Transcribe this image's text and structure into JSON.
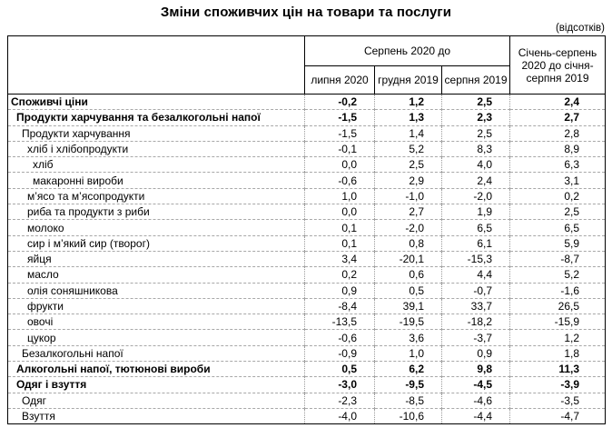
{
  "title": "Зміни споживчих цін на товари та послуги",
  "units_note": "(відсотків)",
  "table": {
    "col_group_header": "Серпень 2020 до",
    "col_headers": [
      "липня 2020",
      "грудня 2019",
      "серпня 2019"
    ],
    "period_col_header": "Січень-серпень 2020 до січня-серпня 2019",
    "rows": [
      {
        "label": "Споживчі ціни",
        "bold": true,
        "indent": 0,
        "values": [
          "-0,2",
          "1,2",
          "2,5",
          "2,4"
        ]
      },
      {
        "label": "Продукти харчування та безалкогольні напої",
        "bold": true,
        "indent": 1,
        "values": [
          "-1,5",
          "1,3",
          "2,3",
          "2,7"
        ]
      },
      {
        "label": "Продукти харчування",
        "bold": false,
        "indent": 2,
        "values": [
          "-1,5",
          "1,4",
          "2,5",
          "2,8"
        ]
      },
      {
        "label": "хліб і хлібопродукти",
        "bold": false,
        "indent": 3,
        "values": [
          "-0,1",
          "5,2",
          "8,3",
          "8,9"
        ]
      },
      {
        "label": "хліб",
        "bold": false,
        "indent": 4,
        "values": [
          "0,0",
          "2,5",
          "4,0",
          "6,3"
        ]
      },
      {
        "label": "макаронні вироби",
        "bold": false,
        "indent": 4,
        "values": [
          "-0,6",
          "2,9",
          "2,4",
          "3,1"
        ]
      },
      {
        "label": "м’ясо та м’ясопродукти",
        "bold": false,
        "indent": 3,
        "values": [
          "1,0",
          "-1,0",
          "-2,0",
          "0,2"
        ]
      },
      {
        "label": "риба та продукти з риби",
        "bold": false,
        "indent": 3,
        "values": [
          "0,0",
          "2,7",
          "1,9",
          "2,5"
        ]
      },
      {
        "label": "молоко",
        "bold": false,
        "indent": 3,
        "values": [
          "0,1",
          "-2,0",
          "6,5",
          "6,5"
        ]
      },
      {
        "label": "сир і м’який сир (творог)",
        "bold": false,
        "indent": 3,
        "values": [
          "0,1",
          "0,8",
          "6,1",
          "5,9"
        ]
      },
      {
        "label": "яйця",
        "bold": false,
        "indent": 3,
        "values": [
          "3,4",
          "-20,1",
          "-15,3",
          "-8,7"
        ]
      },
      {
        "label": "масло",
        "bold": false,
        "indent": 3,
        "values": [
          "0,2",
          "0,6",
          "4,4",
          "5,2"
        ]
      },
      {
        "label": "олія соняшникова",
        "bold": false,
        "indent": 3,
        "values": [
          "0,9",
          "0,5",
          "-0,7",
          "-1,6"
        ]
      },
      {
        "label": "фрукти",
        "bold": false,
        "indent": 3,
        "values": [
          "-8,4",
          "39,1",
          "33,7",
          "26,5"
        ]
      },
      {
        "label": "овочі",
        "bold": false,
        "indent": 3,
        "values": [
          "-13,5",
          "-19,5",
          "-18,2",
          "-15,9"
        ]
      },
      {
        "label": "цукор",
        "bold": false,
        "indent": 3,
        "values": [
          "-0,6",
          "3,6",
          "-3,7",
          "1,2"
        ]
      },
      {
        "label": "Безалкогольні напої",
        "bold": false,
        "indent": 2,
        "values": [
          "-0,9",
          "1,0",
          "0,9",
          "1,8"
        ]
      },
      {
        "label": "Алкогольні напої, тютюнові вироби",
        "bold": true,
        "indent": 1,
        "values": [
          "0,5",
          "6,2",
          "9,8",
          "11,3"
        ]
      },
      {
        "label": "Одяг і взуття",
        "bold": true,
        "indent": 1,
        "values": [
          "-3,0",
          "-9,5",
          "-4,5",
          "-3,9"
        ]
      },
      {
        "label": "Одяг",
        "bold": false,
        "indent": 2,
        "values": [
          "-2,3",
          "-8,5",
          "-4,6",
          "-3,5"
        ]
      },
      {
        "label": "Взуття",
        "bold": false,
        "indent": 2,
        "values": [
          "-4,0",
          "-10,6",
          "-4,4",
          "-4,7"
        ]
      }
    ]
  }
}
